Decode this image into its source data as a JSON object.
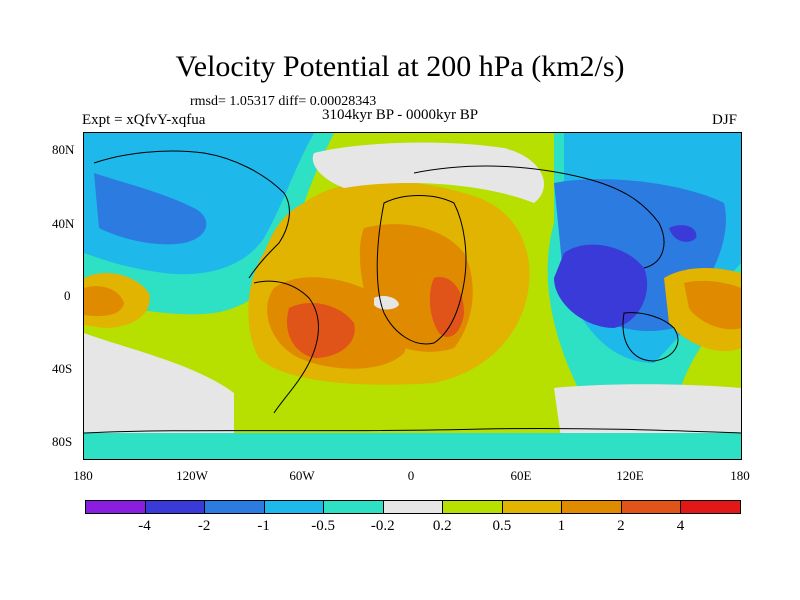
{
  "title": "Velocity Potential at 200 hPa (km2/s)",
  "stats": "rmsd= 1.05317 diff= 0.00028343",
  "experiment": "Expt = xQfvY-xqfua",
  "period": "3104kyr BP - 0000kyr BP",
  "season": "DJF",
  "lat_labels": [
    "80N",
    "40N",
    "0",
    "40S",
    "80S"
  ],
  "lon_labels": [
    "180",
    "120W",
    "60W",
    "0",
    "60E",
    "120E",
    "180"
  ],
  "legend": {
    "labels": [
      "-4",
      "-2",
      "-1",
      "-0.5",
      "-0.2",
      "0.2",
      "0.5",
      "1",
      "2",
      "4"
    ],
    "colors": [
      "#8a1ee0",
      "#3a3ad8",
      "#2c7be0",
      "#1eb8ea",
      "#2ee0c4",
      "#e6e6e6",
      "#b7e000",
      "#e0b400",
      "#e08a00",
      "#e0541a",
      "#e01818"
    ]
  }
}
